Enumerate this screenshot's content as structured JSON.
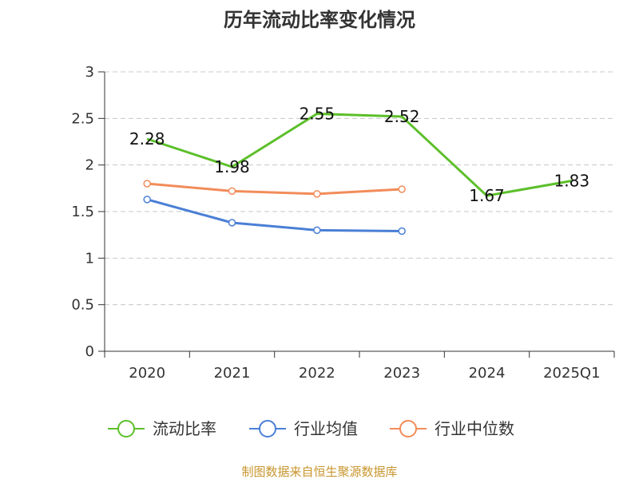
{
  "chart_data": {
    "type": "line",
    "title": "历年流动比率变化情况",
    "categories": [
      "2020",
      "2021",
      "2022",
      "2023",
      "2024",
      "2025Q1"
    ],
    "ylim": [
      0,
      3
    ],
    "yticks": [
      "0",
      "0.5",
      "1",
      "1.5",
      "2",
      "2.5",
      "3"
    ],
    "grid": true,
    "legend_position": "bottom",
    "series": [
      {
        "name": "流动比率",
        "color": "#5cbf2a",
        "values": [
          2.28,
          1.98,
          2.55,
          2.52,
          1.67,
          1.83
        ],
        "labels": [
          "2.28",
          "1.98",
          "2.55",
          "2.52",
          "1.67",
          "1.83"
        ]
      },
      {
        "name": "行业均值",
        "color": "#4a7fd6",
        "values": [
          1.63,
          1.38,
          1.3,
          1.29,
          null,
          null
        ]
      },
      {
        "name": "行业中位数",
        "color": "#f28c5a",
        "values": [
          1.8,
          1.72,
          1.69,
          1.74,
          null,
          null
        ]
      }
    ]
  },
  "source": "制图数据来自恒生聚源数据库"
}
